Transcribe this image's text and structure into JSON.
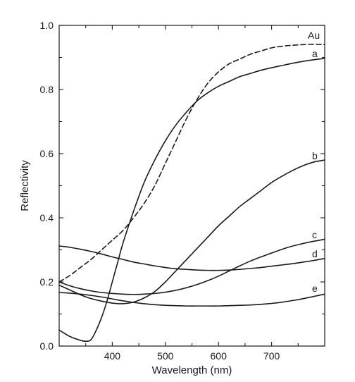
{
  "chart_data": {
    "type": "line",
    "xlabel": "Wavelength (nm)",
    "ylabel": "Reflectivity",
    "xlim": [
      300,
      800
    ],
    "ylim": [
      0,
      1.0
    ],
    "x_ticks": [
      {
        "value": 400,
        "label": "400"
      },
      {
        "value": 500,
        "label": "500"
      },
      {
        "value": 600,
        "label": "600"
      },
      {
        "value": 700,
        "label": "700"
      }
    ],
    "x_minor_ticks": [
      350,
      450,
      550,
      650,
      750
    ],
    "y_ticks": [
      {
        "value": 0.0,
        "label": "0.0"
      },
      {
        "value": 0.2,
        "label": "0.2"
      },
      {
        "value": 0.4,
        "label": "0.4"
      },
      {
        "value": 0.6,
        "label": "0.6"
      },
      {
        "value": 0.8,
        "label": "0.8"
      },
      {
        "value": 1.0,
        "label": "1.0"
      }
    ],
    "y_minor_ticks": [
      0.1,
      0.3,
      0.5,
      0.7,
      0.9
    ],
    "grid": false,
    "legend": "none",
    "series": [
      {
        "name": "Au",
        "dashed": true,
        "x": [
          300,
          320,
          340,
          360,
          380,
          400,
          420,
          440,
          460,
          480,
          500,
          520,
          540,
          560,
          580,
          600,
          620,
          640,
          660,
          680,
          700,
          720,
          740,
          760,
          780,
          800
        ],
        "y": [
          0.2,
          0.22,
          0.245,
          0.27,
          0.3,
          0.33,
          0.36,
          0.4,
          0.445,
          0.5,
          0.57,
          0.64,
          0.71,
          0.77,
          0.82,
          0.855,
          0.88,
          0.895,
          0.91,
          0.92,
          0.93,
          0.935,
          0.938,
          0.94,
          0.941,
          0.94
        ]
      },
      {
        "name": "a",
        "dashed": false,
        "x": [
          300,
          320,
          340,
          350,
          360,
          370,
          380,
          390,
          400,
          410,
          420,
          440,
          460,
          480,
          500,
          520,
          540,
          560,
          580,
          600,
          620,
          640,
          660,
          680,
          700,
          720,
          740,
          760,
          780,
          800
        ],
        "y": [
          0.05,
          0.03,
          0.018,
          0.015,
          0.02,
          0.05,
          0.09,
          0.14,
          0.2,
          0.26,
          0.32,
          0.42,
          0.51,
          0.58,
          0.64,
          0.69,
          0.73,
          0.765,
          0.79,
          0.81,
          0.825,
          0.84,
          0.85,
          0.86,
          0.868,
          0.875,
          0.882,
          0.888,
          0.893,
          0.897
        ]
      },
      {
        "name": "b",
        "dashed": false,
        "x": [
          300,
          320,
          340,
          360,
          380,
          400,
          420,
          440,
          460,
          480,
          500,
          520,
          540,
          560,
          580,
          600,
          620,
          640,
          660,
          680,
          700,
          720,
          740,
          760,
          780,
          800
        ],
        "y": [
          0.19,
          0.175,
          0.16,
          0.148,
          0.14,
          0.134,
          0.132,
          0.137,
          0.15,
          0.17,
          0.2,
          0.235,
          0.27,
          0.305,
          0.34,
          0.375,
          0.405,
          0.435,
          0.46,
          0.485,
          0.51,
          0.53,
          0.548,
          0.563,
          0.574,
          0.58
        ]
      },
      {
        "name": "c",
        "dashed": false,
        "x": [
          300,
          320,
          340,
          360,
          380,
          400,
          420,
          440,
          460,
          480,
          500,
          520,
          540,
          560,
          580,
          600,
          620,
          640,
          660,
          680,
          700,
          720,
          740,
          760,
          780,
          800
        ],
        "y": [
          0.2,
          0.188,
          0.179,
          0.172,
          0.167,
          0.164,
          0.162,
          0.161,
          0.162,
          0.164,
          0.168,
          0.174,
          0.182,
          0.192,
          0.204,
          0.218,
          0.234,
          0.25,
          0.265,
          0.278,
          0.29,
          0.302,
          0.312,
          0.32,
          0.327,
          0.333
        ]
      },
      {
        "name": "d",
        "dashed": false,
        "x": [
          300,
          320,
          340,
          360,
          380,
          400,
          420,
          440,
          460,
          480,
          500,
          520,
          540,
          560,
          580,
          600,
          620,
          640,
          660,
          680,
          700,
          720,
          740,
          760,
          780,
          800
        ],
        "y": [
          0.312,
          0.308,
          0.302,
          0.295,
          0.287,
          0.278,
          0.27,
          0.262,
          0.256,
          0.25,
          0.245,
          0.241,
          0.239,
          0.237,
          0.236,
          0.236,
          0.237,
          0.239,
          0.242,
          0.245,
          0.249,
          0.253,
          0.257,
          0.262,
          0.267,
          0.273
        ]
      },
      {
        "name": "e",
        "dashed": false,
        "x": [
          300,
          320,
          340,
          360,
          380,
          400,
          420,
          440,
          460,
          480,
          500,
          520,
          540,
          560,
          580,
          600,
          620,
          640,
          660,
          680,
          700,
          720,
          740,
          760,
          780,
          800
        ],
        "y": [
          0.167,
          0.165,
          0.162,
          0.158,
          0.153,
          0.147,
          0.141,
          0.136,
          0.132,
          0.129,
          0.127,
          0.126,
          0.125,
          0.125,
          0.125,
          0.125,
          0.126,
          0.127,
          0.128,
          0.13,
          0.133,
          0.137,
          0.142,
          0.148,
          0.155,
          0.162
        ]
      }
    ]
  }
}
